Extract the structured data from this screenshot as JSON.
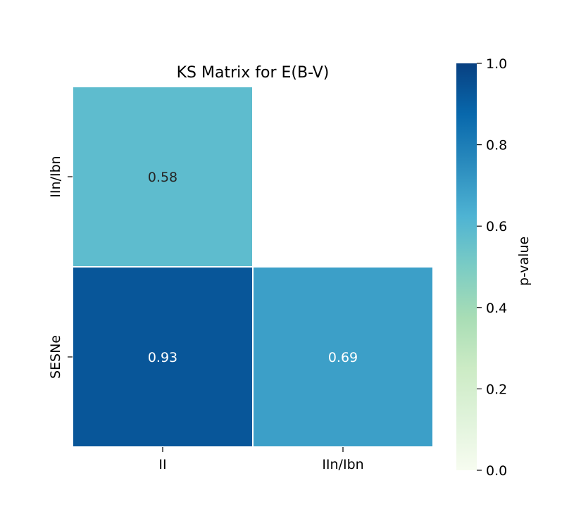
{
  "chart_data": {
    "type": "heatmap",
    "title": "KS Matrix for E(B-V)",
    "x_categories": [
      "II",
      "IIn/Ibn"
    ],
    "y_categories": [
      "IIn/Ibn",
      "SESNe"
    ],
    "cells": [
      {
        "x": "II",
        "y": "IIn/Ibn",
        "value": 0.58,
        "label": "0.58"
      },
      {
        "x": "II",
        "y": "SESNe",
        "value": 0.93,
        "label": "0.93"
      },
      {
        "x": "IIn/Ibn",
        "y": "SESNe",
        "value": 0.69,
        "label": "0.69"
      }
    ],
    "masked_cells": [
      {
        "x": "IIn/Ibn",
        "y": "IIn/Ibn"
      }
    ],
    "colorbar": {
      "label": "p-value",
      "range": [
        0,
        1
      ],
      "ticks": [
        {
          "value": 0.0,
          "label": "0.0"
        },
        {
          "value": 0.2,
          "label": "0.2"
        },
        {
          "value": 0.4,
          "label": "0.4"
        },
        {
          "value": 0.6,
          "label": "0.6"
        },
        {
          "value": 0.8,
          "label": "0.8"
        },
        {
          "value": 1.0,
          "label": "1.0"
        }
      ],
      "colormap": "GnBu",
      "stops": [
        "#f7fcf0",
        "#e0f3db",
        "#ccebc5",
        "#a8ddb5",
        "#7bccc4",
        "#4eb3d3",
        "#2b8cbe",
        "#0868ac",
        "#084081"
      ]
    },
    "cell_text_colors": {
      "light_bg": "#262626",
      "dark_bg": "#ffffff"
    }
  }
}
